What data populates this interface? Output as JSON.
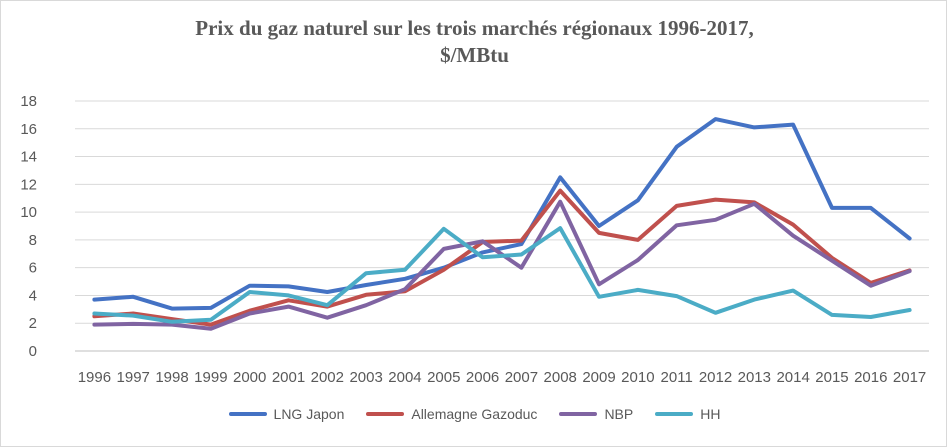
{
  "chart_data": {
    "type": "line",
    "title_line1": "Prix du gaz naturel sur les trois marchés régionaux 1996-2017,",
    "title_line2": "$/MBtu",
    "categories": [
      "1996",
      "1997",
      "1998",
      "1999",
      "2000",
      "2001",
      "2002",
      "2003",
      "2004",
      "2005",
      "2006",
      "2007",
      "2008",
      "2009",
      "2010",
      "2011",
      "2012",
      "2013",
      "2014",
      "2015",
      "2016",
      "2017"
    ],
    "ylim": [
      0,
      18
    ],
    "yticks": [
      0,
      2,
      4,
      6,
      8,
      10,
      12,
      14,
      16,
      18
    ],
    "grid": true,
    "legend_position": "bottom",
    "series": [
      {
        "name": "LNG Japon",
        "color": "#4472C4",
        "values": [
          3.7,
          3.9,
          3.05,
          3.1,
          4.7,
          4.65,
          4.25,
          4.75,
          5.2,
          6.0,
          7.1,
          7.7,
          12.5,
          9.0,
          10.85,
          14.7,
          16.7,
          16.1,
          16.3,
          10.3,
          10.3,
          8.1
        ]
      },
      {
        "name": "Allemagne Gazoduc",
        "color": "#C0504D",
        "values": [
          2.5,
          2.7,
          2.3,
          1.9,
          2.9,
          3.65,
          3.2,
          4.05,
          4.3,
          5.85,
          7.85,
          7.95,
          11.55,
          8.5,
          8.0,
          10.45,
          10.9,
          10.7,
          9.1,
          6.7,
          4.9,
          5.8
        ]
      },
      {
        "name": "NBP",
        "color": "#8064A2",
        "values": [
          1.9,
          1.95,
          1.9,
          1.6,
          2.7,
          3.2,
          2.4,
          3.3,
          4.45,
          7.35,
          7.9,
          6.0,
          10.75,
          4.8,
          6.55,
          9.05,
          9.45,
          10.6,
          8.3,
          6.5,
          4.7,
          5.75
        ]
      },
      {
        "name": "HH",
        "color": "#4BACC6",
        "values": [
          2.7,
          2.55,
          2.1,
          2.25,
          4.25,
          4.0,
          3.3,
          5.6,
          5.85,
          8.8,
          6.75,
          6.95,
          8.85,
          3.9,
          4.4,
          3.95,
          2.75,
          3.7,
          4.35,
          2.6,
          2.45,
          2.95
        ]
      }
    ]
  }
}
